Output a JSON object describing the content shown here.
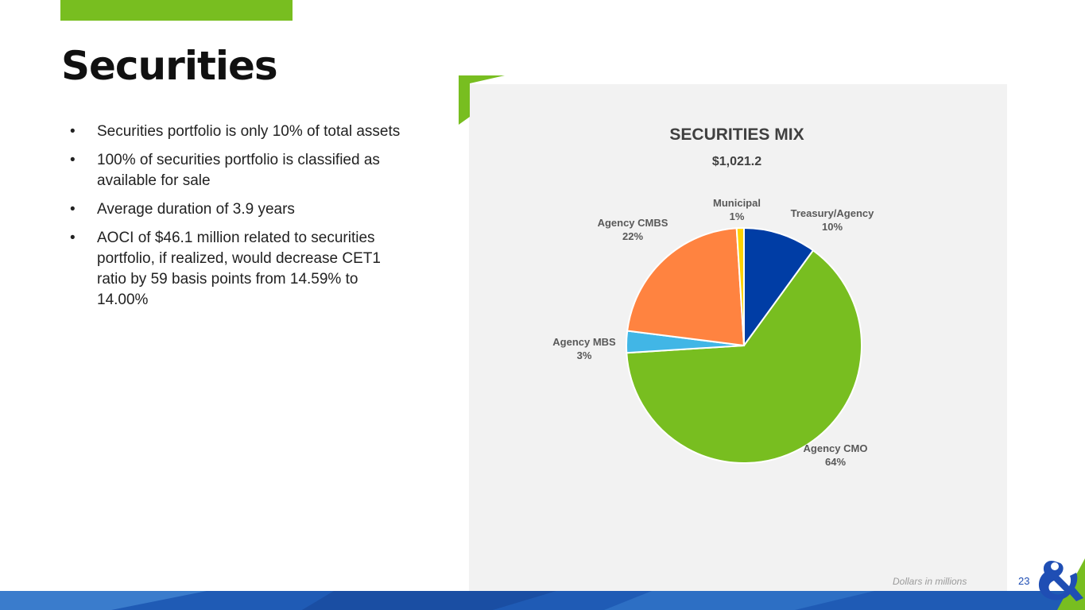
{
  "slide": {
    "title": "Securities",
    "page_number": "23",
    "footnote": "Dollars in millions"
  },
  "bullets": [
    "Securities portfolio is only 10% of total assets",
    "100% of securities portfolio is classified as available for sale",
    "Average duration of 3.9 years",
    "AOCI of $46.1 million related to securities portfolio, if realized, would decrease CET1 ratio by 59 basis points from 14.59% to 14.00%"
  ],
  "bullet_symbol": "•",
  "colors": {
    "brand_green": "#78be20",
    "brand_blue": "#1f4eb4"
  },
  "chart_data": {
    "type": "pie",
    "title": "SECURITIES MIX",
    "subtitle": "$1,021.2",
    "slices": [
      {
        "label": "Treasury/Agency",
        "value": 10,
        "display": "10%",
        "color": "#003da5"
      },
      {
        "label": "Agency CMO",
        "value": 64,
        "display": "64%",
        "color": "#78be20"
      },
      {
        "label": "Agency MBS",
        "value": 3,
        "display": "3%",
        "color": "#41b6e6"
      },
      {
        "label": "Agency CMBS",
        "value": 22,
        "display": "22%",
        "color": "#ff8340"
      },
      {
        "label": "Municipal",
        "value": 1,
        "display": "1%",
        "color": "#ffd200"
      }
    ],
    "start_angle_deg": 0,
    "direction": "clockwise"
  }
}
